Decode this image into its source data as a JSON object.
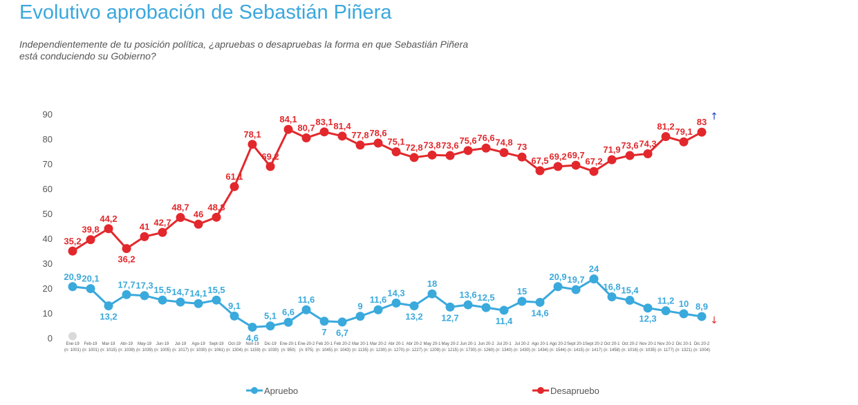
{
  "page": {
    "title": "Evolutivo aprobación de Sebastián Piñera",
    "subtitle_line1": "Independientemente de tu posición política, ¿apruebas o desapruebas la forma en que Sebastián Piñera",
    "subtitle_line2": "está conduciendo su Gobierno?"
  },
  "chart_data": {
    "type": "line",
    "ylim": [
      0,
      90
    ],
    "yticks": [
      0,
      10,
      20,
      30,
      40,
      50,
      60,
      70,
      80,
      90
    ],
    "grid": false,
    "legend_position": "bottom",
    "categories": [
      "Ene-19",
      "Feb-19",
      "Mar-19",
      "Abr-19",
      "May-19",
      "Jun-19",
      "Jul-19",
      "Ago-19",
      "Sept-19",
      "Oct-19",
      "Nov-19",
      "Dic-19",
      "Ene-20-1",
      "Ene-20-2",
      "Feb 20-1",
      "Feb 20-2",
      "Mar 20-1",
      "Mar 20-2",
      "Abr 20-1",
      "Abr 20-2",
      "May 20-1",
      "May 20-2",
      "Jun 20-1",
      "Jun 20-2",
      "Jul 20-1",
      "Jul 20-2",
      "Ago 20-1",
      "Ago 20-2",
      "Sept 20-1",
      "Sept 20-2",
      "Oct 20-1",
      "Oct 20-2",
      "Nov 20-1",
      "Nov 20-2",
      "Dic 20-1",
      "Dic 20-2"
    ],
    "sample_sizes": [
      "(n: 1001)",
      "(n: 1001)",
      "(n: 1015)",
      "(n: 1039)",
      "(n: 1039)",
      "(n: 1005)",
      "(n: 1017)",
      "(n: 1030)",
      "(n: 1061)",
      "(n: 1304)",
      "(n: 1159)",
      "(n: 1030)",
      "(n: 950)",
      "(n: 975)",
      "(n: 1045)",
      "(n: 1043)",
      "(n: 1135)",
      "(n: 1230)",
      "(n: 1270)",
      "(n: 1227)",
      "(n: 1209)",
      "(n: 1215)",
      "(n: 1730)",
      "(n: 1260)",
      "(n: 1340)",
      "(n: 1430)",
      "(n: 1434)",
      "(n: 1544)",
      "(n: 1415)",
      "(n: 1417)",
      "(n: 1458)",
      "(n: 1016)",
      "(n: 1035)",
      "(n: 1177)",
      "(n: 1321)",
      "(n: 1004)"
    ],
    "series": [
      {
        "name": "Apruebo",
        "color": "#3aa9dc",
        "values": [
          20.9,
          20.1,
          13.2,
          17.7,
          17.3,
          15.5,
          14.7,
          14.1,
          15.5,
          9.1,
          4.6,
          5.1,
          6.6,
          11.6,
          7,
          6.7,
          9,
          11.6,
          14.3,
          13.2,
          18,
          12.7,
          13.6,
          12.5,
          11.4,
          15,
          14.6,
          20.9,
          19.7,
          24,
          16.8,
          15.4,
          12.3,
          11.2,
          10,
          8.9
        ],
        "labels": [
          "20,9",
          "20,1",
          "13,2",
          "17,7",
          "17,3",
          "15,5",
          "14,7",
          "14,1",
          "15,5",
          "9,1",
          "4,6",
          "5,1",
          "6,6",
          "11,6",
          "7",
          "6,7",
          "9",
          "11,6",
          "14,3",
          "13,2",
          "18",
          "12,7",
          "13,6",
          "12,5",
          "11,4",
          "15",
          "14,6",
          "20,9",
          "19,7",
          "24",
          "16,8",
          "15,4",
          "12,3",
          "11,2",
          "10",
          "8,9"
        ]
      },
      {
        "name": "Desapruebo",
        "color": "#e2282c",
        "values": [
          35.2,
          39.8,
          44.2,
          36.2,
          41,
          42.7,
          48.7,
          46,
          48.8,
          61.1,
          78.1,
          69.2,
          84.1,
          80.7,
          83.1,
          81.4,
          77.8,
          78.6,
          75.1,
          72.8,
          73.8,
          73.6,
          75.6,
          76.6,
          74.8,
          73,
          67.5,
          69.2,
          69.7,
          67.2,
          71.9,
          73.6,
          74.3,
          81.2,
          79.1,
          83
        ],
        "labels": [
          "35,2",
          "39,8",
          "44,2",
          "36,2",
          "41",
          "42,7",
          "48,7",
          "46",
          "48,8",
          "61,1",
          "78,1",
          "69,2",
          "84,1",
          "80,7",
          "83,1",
          "81,4",
          "77,8",
          "78,6",
          "75,1",
          "72,8",
          "73,8",
          "73,6",
          "75,6",
          "76,6",
          "74,8",
          "73",
          "67,5",
          "69,2",
          "69,7",
          "67,2",
          "71,9",
          "73,6",
          "74,3",
          "81,2",
          "79,1",
          "83"
        ]
      }
    ],
    "trend_markers": {
      "up_color": "#1f3fbf",
      "down_color": "#e2282c"
    }
  }
}
